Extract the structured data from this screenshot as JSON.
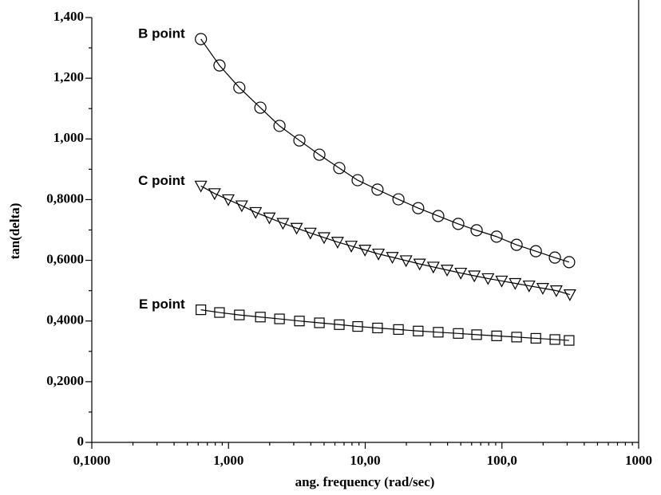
{
  "chart_data": {
    "type": "line",
    "x_label": "ang. frequency (rad/sec)",
    "y_label": "tan(delta)",
    "xscale": "log",
    "xlim": [
      0.1,
      1000
    ],
    "ylim": [
      0,
      1.4
    ],
    "xticks": [
      {
        "value": 0.1,
        "label": "0,1000"
      },
      {
        "value": 1,
        "label": "1,000"
      },
      {
        "value": 10,
        "label": "10,00"
      },
      {
        "value": 100,
        "label": "100,0"
      },
      1000
    ],
    "xminorticks": [
      0.2,
      0.3,
      0.4,
      0.5,
      0.6,
      0.7,
      0.8,
      0.9,
      2,
      3,
      4,
      5,
      6,
      7,
      8,
      9,
      20,
      30,
      40,
      50,
      60,
      70,
      80,
      90,
      200,
      300,
      400,
      500,
      600,
      700,
      800,
      900
    ],
    "yticks": [
      0,
      {
        "value": 0.2,
        "label": "0,2000"
      },
      {
        "value": 0.4,
        "label": "0,4000"
      },
      {
        "value": 0.6,
        "label": "0,6000"
      },
      {
        "value": 0.8,
        "label": "0,8000"
      },
      {
        "value": 1.0,
        "label": "1,000"
      },
      {
        "value": 1.2,
        "label": "1,200"
      },
      {
        "value": 1.4,
        "label": "1,400"
      }
    ],
    "yminorticks": [
      0.1,
      0.3,
      0.5,
      0.7,
      0.9,
      1.1,
      1.3
    ],
    "series": [
      {
        "name": "B point",
        "color": "#000000",
        "marker": "circle",
        "x": [
          0.628,
          0.859,
          1.2,
          1.71,
          2.36,
          3.3,
          4.62,
          6.46,
          8.8,
          12.3,
          17.5,
          24.4,
          34.2,
          47.9,
          65.3,
          91.4,
          128,
          177,
          244,
          310
        ],
        "values": [
          1.329,
          1.242,
          1.169,
          1.103,
          1.043,
          0.995,
          0.948,
          0.904,
          0.864,
          0.833,
          0.801,
          0.772,
          0.746,
          0.72,
          0.699,
          0.678,
          0.651,
          0.63,
          0.609,
          0.594
        ]
      },
      {
        "name": "C point",
        "color": "#000000",
        "marker": "triangle-down",
        "x": [
          0.628,
          0.791,
          0.996,
          1.25,
          1.58,
          1.99,
          2.5,
          3.15,
          3.97,
          5.0,
          6.28,
          7.91,
          9.96,
          12.5,
          15.8,
          19.9,
          25.0,
          31.5,
          39.7,
          50.0,
          62.8,
          79.1,
          99.6,
          125,
          158,
          199,
          250,
          314
        ],
        "values": [
          0.845,
          0.82,
          0.8,
          0.78,
          0.758,
          0.74,
          0.722,
          0.706,
          0.69,
          0.675,
          0.66,
          0.647,
          0.634,
          0.621,
          0.61,
          0.599,
          0.588,
          0.578,
          0.568,
          0.558,
          0.549,
          0.54,
          0.532,
          0.524,
          0.516,
          0.508,
          0.5,
          0.487
        ]
      },
      {
        "name": "E point",
        "color": "#000000",
        "marker": "square",
        "x": [
          0.628,
          0.859,
          1.2,
          1.71,
          2.36,
          3.3,
          4.62,
          6.46,
          8.8,
          12.3,
          17.5,
          24.4,
          34.2,
          47.9,
          65.3,
          91.4,
          128,
          177,
          244,
          310
        ],
        "values": [
          0.437,
          0.428,
          0.42,
          0.413,
          0.407,
          0.4,
          0.394,
          0.388,
          0.382,
          0.377,
          0.372,
          0.367,
          0.363,
          0.359,
          0.355,
          0.351,
          0.347,
          0.343,
          0.339,
          0.336
        ]
      }
    ]
  }
}
